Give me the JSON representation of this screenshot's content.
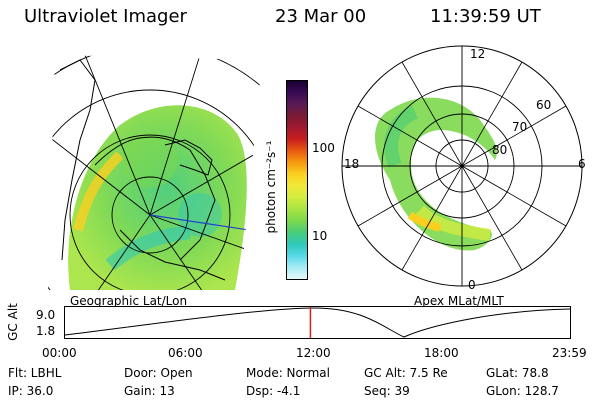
{
  "header": {
    "title": "Ultraviolet Imager",
    "date": "23 Mar 00",
    "time": "11:39:59 UT"
  },
  "colorbar": {
    "unit_label": "photon cm⁻²s⁻¹",
    "ticks": [
      "100",
      "10"
    ],
    "colors": [
      "#1a0033",
      "#3a0a55",
      "#5a1a55",
      "#7a1a35",
      "#a01a30",
      "#c81e1e",
      "#e85a10",
      "#f59a10",
      "#fad020",
      "#f0e838",
      "#d2ec40",
      "#a8e444",
      "#7cd84c",
      "#48cc78",
      "#30c8b8",
      "#58d8e8",
      "#a8ecf4",
      "#e8f8fa"
    ]
  },
  "geo_map": {
    "caption": "Geographic Lat/Lon"
  },
  "apex_map": {
    "caption": "Apex MLat/MLT",
    "mlt_labels": {
      "top": "12",
      "left": "18",
      "right": "6",
      "bottom": "0"
    },
    "lat_labels": [
      "60",
      "70",
      "80"
    ]
  },
  "timeline": {
    "axis_label": "GC Alt",
    "y_ticks": [
      "9.0",
      "1.8"
    ],
    "x_ticks": [
      "00:00",
      "06:00",
      "12:00",
      "18:00",
      "23:59"
    ],
    "current_time_fraction": 0.486
  },
  "status": {
    "flt": "Flt: LBHL",
    "ip": "IP: 36.0",
    "door": "Door: Open",
    "gain": "Gain: 13",
    "mode": "Mode: Normal",
    "dsp": "Dsp:    -4.1",
    "gcalt": "GC Alt: 7.5 Re",
    "seq": "Seq: 39",
    "glat": "GLat:  78.8",
    "glon": "GLon: 128.7"
  }
}
